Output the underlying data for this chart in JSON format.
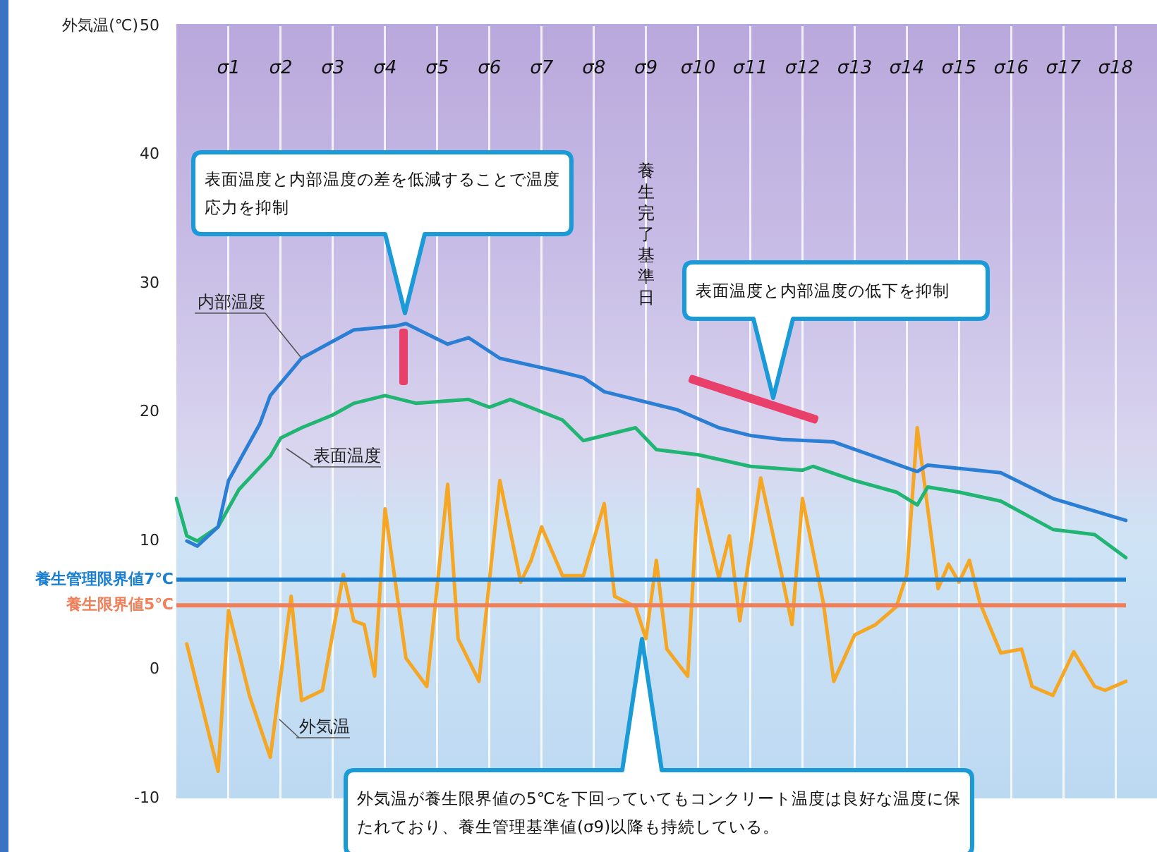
{
  "chart_data": {
    "type": "line",
    "ylabel": "外気温(℃)",
    "categories": [
      null,
      null,
      null,
      null,
      null,
      "σ1",
      null,
      null,
      null,
      null,
      "σ2",
      null,
      null,
      null,
      null,
      "σ3",
      null,
      null,
      null,
      null,
      "σ4",
      null,
      null,
      null,
      null,
      "σ5",
      null,
      null,
      null,
      null,
      "σ6",
      null,
      null,
      null,
      null,
      "σ7",
      null,
      null,
      null,
      null,
      "σ8",
      null,
      null,
      null,
      null,
      "σ9",
      null,
      null,
      null,
      null,
      "σ10",
      null,
      null,
      null,
      null,
      "σ11",
      null,
      null,
      null,
      null,
      "σ12",
      null,
      null,
      null,
      null,
      "σ13",
      null,
      null,
      null,
      null,
      "σ14",
      null,
      null,
      null,
      null,
      "σ15",
      null,
      null,
      null,
      null,
      "σ16",
      null,
      null,
      null,
      null,
      "σ17",
      null,
      null,
      null,
      null,
      "σ18",
      null
    ],
    "ylim": [
      -10,
      50
    ],
    "yticks": [
      -10,
      0,
      10,
      20,
      30,
      40,
      50
    ],
    "grid": "x",
    "legend": false,
    "marker": "none",
    "line_style": "solid",
    "series": [
      {
        "name": "内部温度",
        "color": "#2a7fd4",
        "values": [
          null,
          10.0,
          9.6,
          null,
          11.1,
          14.7,
          null,
          null,
          19.1,
          21.3,
          null,
          null,
          24.2,
          null,
          null,
          null,
          null,
          26.4,
          null,
          null,
          null,
          26.7,
          26.9,
          null,
          null,
          null,
          25.3,
          null,
          25.8,
          null,
          null,
          24.2,
          null,
          null,
          null,
          null,
          null,
          23.1,
          null,
          22.7,
          null,
          21.6,
          null,
          null,
          null,
          null,
          null,
          null,
          20.2,
          null,
          null,
          null,
          18.8,
          null,
          null,
          18.2,
          null,
          null,
          17.9,
          null,
          null,
          null,
          null,
          17.7,
          null,
          null,
          null,
          null,
          null,
          null,
          null,
          15.4,
          15.9,
          null,
          null,
          null,
          null,
          null,
          null,
          15.3,
          null,
          null,
          null,
          null,
          13.3,
          null,
          null,
          null,
          null,
          null,
          null,
          11.6
        ]
      },
      {
        "name": "表面温度",
        "color": "#21b573",
        "values": [
          13.3,
          10.4,
          10.0,
          null,
          11.1,
          null,
          14.0,
          null,
          null,
          16.6,
          18.0,
          null,
          18.8,
          null,
          null,
          19.8,
          null,
          20.7,
          null,
          null,
          21.3,
          null,
          null,
          20.7,
          null,
          null,
          null,
          null,
          21.0,
          null,
          20.4,
          null,
          21.0,
          null,
          null,
          null,
          null,
          19.4,
          null,
          17.8,
          null,
          null,
          null,
          null,
          18.8,
          null,
          17.1,
          null,
          null,
          null,
          16.7,
          null,
          null,
          null,
          null,
          15.8,
          null,
          null,
          null,
          null,
          15.5,
          15.8,
          null,
          null,
          null,
          14.7,
          null,
          null,
          null,
          13.8,
          null,
          12.8,
          14.2,
          null,
          null,
          13.8,
          null,
          null,
          null,
          13.1,
          null,
          null,
          null,
          null,
          10.9,
          null,
          null,
          null,
          10.5,
          null,
          null,
          8.7
        ]
      },
      {
        "name": "外気温",
        "color": "#f5a623",
        "values": [
          null,
          2.0,
          null,
          null,
          -7.9,
          4.6,
          null,
          -2.0,
          null,
          -6.8,
          null,
          5.7,
          -2.4,
          null,
          -1.6,
          null,
          7.4,
          3.8,
          3.5,
          -0.5,
          12.5,
          null,
          0.9,
          null,
          -1.3,
          null,
          14.4,
          2.4,
          null,
          -0.9,
          null,
          14.7,
          null,
          6.8,
          8.5,
          11.1,
          null,
          7.3,
          null,
          7.3,
          null,
          12.9,
          5.7,
          null,
          4.9,
          2.4,
          8.5,
          1.6,
          null,
          -0.5,
          14.0,
          null,
          7.1,
          10.4,
          3.8,
          null,
          14.9,
          null,
          7.4,
          3.5,
          13.3,
          null,
          5.2,
          -0.9,
          null,
          2.7,
          null,
          3.5,
          null,
          4.9,
          7.4,
          18.8,
          null,
          6.3,
          8.2,
          6.8,
          8.5,
          5.2,
          null,
          1.3,
          null,
          1.6,
          -1.3,
          null,
          -2.0,
          null,
          1.4,
          null,
          -1.3,
          -1.6,
          null,
          -0.9
        ]
      }
    ],
    "ref_lines": [
      {
        "axis": "y",
        "value": 7,
        "label": "養生管理限界値7℃",
        "color": "#1a7fd0"
      },
      {
        "axis": "y",
        "value": 5,
        "label": "養生限界値5℃",
        "color": "#f0805a"
      }
    ],
    "annotations": [
      "表面温度と内部温度の差を低減することで温度応力を抑制",
      "養生完了基準日",
      "表面温度と内部温度の低下を抑制",
      "外気温が養生限界値の5℃を下回っていてもコンクリート温度は良好な温度に保たれており、養生管理基準値(σ9)以降も持続している。"
    ]
  }
}
